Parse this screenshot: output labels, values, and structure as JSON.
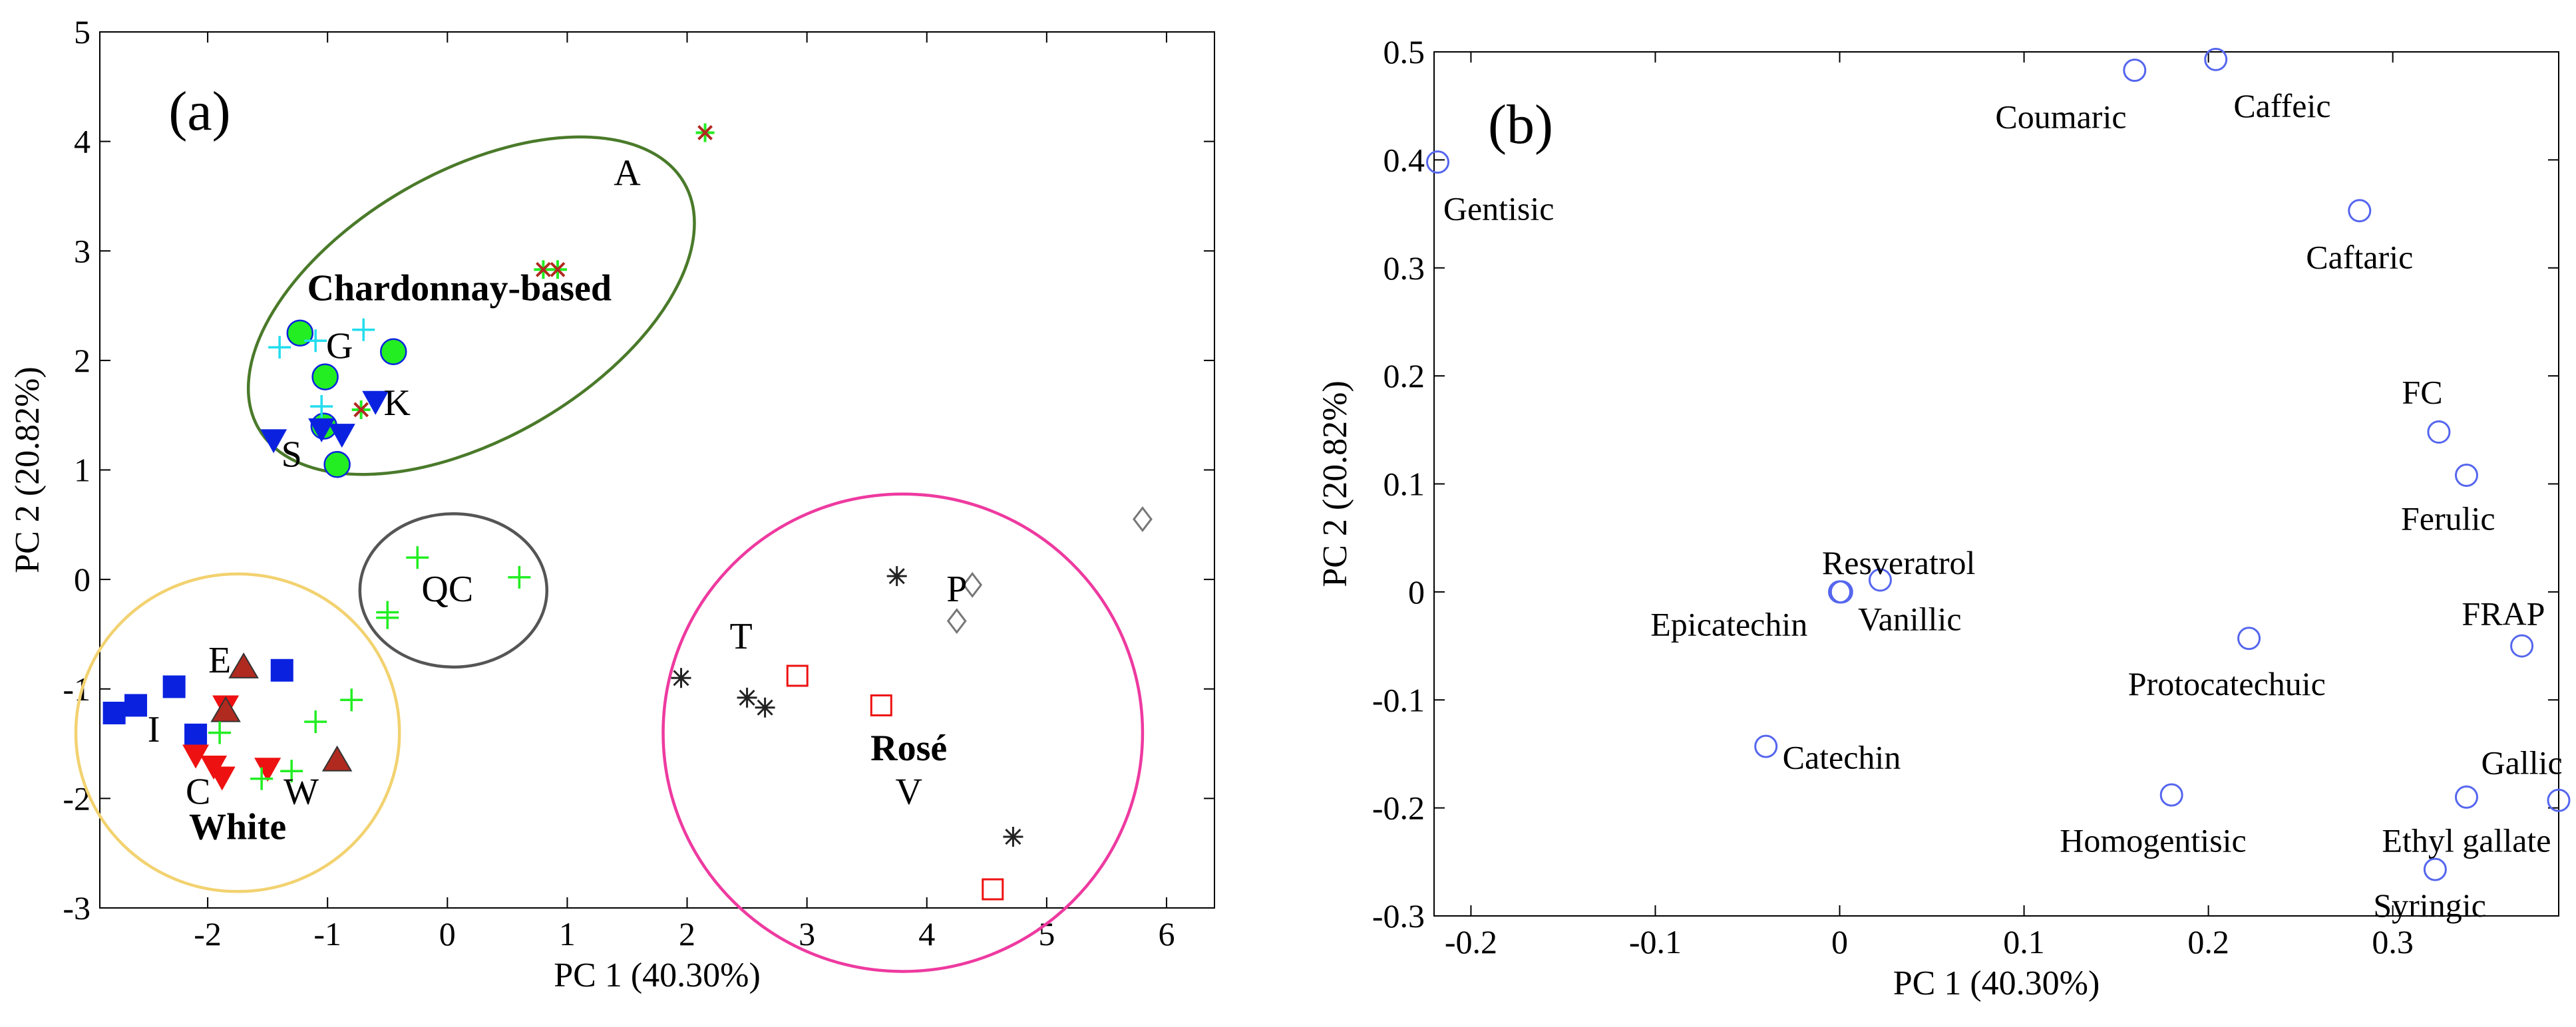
{
  "colors": {
    "blue": "#0a22e0",
    "red": "#ee1111",
    "green": "#22ee22",
    "cyan": "#22ddee",
    "dark": "#222222",
    "gray": "#777777",
    "brick": "#b02a20",
    "chard_ellipse": "#4a7a2a",
    "qc_ellipse": "#555555",
    "rose_ellipse": "#ee3aa0",
    "white_ellipse": "#f2d270",
    "loading_marker": "#5566ee"
  },
  "chart_data": [
    {
      "type": "scatter",
      "panel_label": "(a)",
      "xlabel": "PC 1 (40.30%)",
      "ylabel": "PC 2 (20.82%)",
      "xlim": [
        -2.9,
        6.4
      ],
      "ylim": [
        -3,
        5
      ],
      "xticks": [
        -2,
        -1,
        0,
        1,
        2,
        3,
        4,
        5,
        6
      ],
      "yticks": [
        -3,
        -2,
        -1,
        0,
        1,
        2,
        3,
        4,
        5
      ],
      "xtick_labels": [
        "-2",
        "-1",
        "0",
        "1",
        "2",
        "3",
        "4",
        "5",
        "6"
      ],
      "ytick_labels": [
        "-3",
        "-2",
        "-1",
        "0",
        "1",
        "2",
        "3",
        "4",
        "5"
      ],
      "series": [
        {
          "name": "white-squares",
          "marker": "square-filled",
          "color": "blue",
          "points": [
            [
              -2.78,
              -1.22
            ],
            [
              -2.6,
              -1.15
            ],
            [
              -2.28,
              -0.98
            ],
            [
              -2.1,
              -1.42
            ],
            [
              -1.38,
              -0.83
            ]
          ]
        },
        {
          "name": "white-down-triangles",
          "marker": "triangle-down-filled",
          "color": "red",
          "points": [
            [
              -2.1,
              -1.6
            ],
            [
              -1.95,
              -1.7
            ],
            [
              -1.88,
              -1.8
            ],
            [
              -1.85,
              -1.15
            ],
            [
              -1.5,
              -1.72
            ]
          ]
        },
        {
          "name": "white-up-triangles",
          "marker": "triangle-up-filled",
          "color": "brick",
          "points": [
            [
              -1.7,
              -0.8
            ],
            [
              -1.85,
              -1.2
            ],
            [
              -0.92,
              -1.65
            ]
          ]
        },
        {
          "name": "white-plus",
          "marker": "plus",
          "color": "green",
          "points": [
            [
              -1.9,
              -1.4
            ],
            [
              -1.55,
              -1.82
            ],
            [
              -1.3,
              -1.75
            ],
            [
              -1.1,
              -1.3
            ],
            [
              -0.8,
              -1.1
            ]
          ]
        },
        {
          "name": "qc-plus",
          "marker": "plus",
          "color": "green",
          "points": [
            [
              -0.25,
              0.2
            ],
            [
              -0.5,
              -0.3
            ],
            [
              -0.5,
              -0.35
            ],
            [
              0.6,
              0.02
            ]
          ]
        },
        {
          "name": "chard-circles",
          "marker": "circle-filled",
          "color": "green",
          "points": [
            [
              -1.23,
              2.25
            ],
            [
              -1.02,
              1.85
            ],
            [
              -0.45,
              2.08
            ],
            [
              -0.92,
              1.05
            ],
            [
              -1.03,
              1.4
            ]
          ]
        },
        {
          "name": "chard-down-triangles",
          "marker": "triangle-down-filled",
          "color": "blue",
          "points": [
            [
              -1.45,
              1.28
            ],
            [
              -0.88,
              1.33
            ],
            [
              -0.6,
              1.63
            ],
            [
              -1.05,
              1.38
            ]
          ]
        },
        {
          "name": "chard-plus",
          "marker": "plus",
          "color": "cyan",
          "points": [
            [
              -1.4,
              2.12
            ],
            [
              -1.1,
              2.18
            ],
            [
              -0.7,
              2.28
            ],
            [
              -1.05,
              1.58
            ]
          ]
        },
        {
          "name": "chard-star",
          "marker": "star-brick-green",
          "color": "brick",
          "points": [
            [
              0.8,
              2.83
            ],
            [
              0.92,
              2.83
            ],
            [
              2.15,
              4.08
            ],
            [
              -0.72,
              1.55
            ]
          ]
        },
        {
          "name": "rose-star",
          "marker": "asterisk",
          "color": "dark",
          "points": [
            [
              1.95,
              -0.9
            ],
            [
              2.5,
              -1.08
            ],
            [
              2.65,
              -1.17
            ],
            [
              3.75,
              0.03
            ],
            [
              4.72,
              -2.35
            ]
          ]
        },
        {
          "name": "rose-square",
          "marker": "square-open",
          "color": "red",
          "points": [
            [
              2.92,
              -0.88
            ],
            [
              3.62,
              -1.15
            ],
            [
              4.55,
              -2.83
            ]
          ]
        },
        {
          "name": "rose-diamond",
          "marker": "diamond-open",
          "color": "gray",
          "points": [
            [
              4.25,
              -0.38
            ],
            [
              4.38,
              -0.05
            ],
            [
              5.8,
              0.55
            ]
          ]
        }
      ],
      "ellipses": [
        {
          "name": "chardonnay-ellipse",
          "cx": 0.2,
          "cy": 2.5,
          "rx": 2.05,
          "ry": 1.22,
          "angle_deg": -30,
          "color": "chard_ellipse"
        },
        {
          "name": "qc-ellipse",
          "cx": 0.05,
          "cy": -0.1,
          "rx": 0.78,
          "ry": 0.7,
          "angle_deg": 0,
          "color": "qc_ellipse"
        },
        {
          "name": "rose-ellipse",
          "cx": 3.8,
          "cy": -1.4,
          "rx": 2.0,
          "ry": 2.18,
          "angle_deg": 0,
          "color": "rose_ellipse"
        },
        {
          "name": "white-ellipse",
          "cx": -1.75,
          "cy": -1.4,
          "rx": 1.35,
          "ry": 1.45,
          "angle_deg": 0,
          "color": "white_ellipse"
        }
      ],
      "annotations": [
        {
          "text": "A",
          "x": 1.5,
          "y": 3.6,
          "bold": false
        },
        {
          "text": "Chardonnay-based",
          "x": 0.1,
          "y": 2.55,
          "bold": true
        },
        {
          "text": "G",
          "x": -0.9,
          "y": 2.02,
          "bold": false
        },
        {
          "text": "K",
          "x": -0.42,
          "y": 1.5,
          "bold": false
        },
        {
          "text": "S",
          "x": -1.3,
          "y": 1.03,
          "bold": false
        },
        {
          "text": "QC",
          "x": 0.0,
          "y": -0.2,
          "bold": false
        },
        {
          "text": "E",
          "x": -1.9,
          "y": -0.85,
          "bold": false
        },
        {
          "text": "I",
          "x": -2.45,
          "y": -1.48,
          "bold": false
        },
        {
          "text": "C",
          "x": -2.08,
          "y": -2.05,
          "bold": false
        },
        {
          "text": "W",
          "x": -1.22,
          "y": -2.05,
          "bold": false
        },
        {
          "text": "White",
          "x": -1.75,
          "y": -2.37,
          "bold": true
        },
        {
          "text": "T",
          "x": 2.45,
          "y": -0.63,
          "bold": false
        },
        {
          "text": "P",
          "x": 4.25,
          "y": -0.2,
          "bold": false
        },
        {
          "text": "Rosé",
          "x": 3.85,
          "y": -1.65,
          "bold": true
        },
        {
          "text": "V",
          "x": 3.85,
          "y": -2.05,
          "bold": false
        }
      ]
    },
    {
      "type": "scatter",
      "panel_label": "(b)",
      "xlabel": "PC 1 (40.30%)",
      "ylabel": "PC 2 (20.82%)",
      "xlim": [
        -0.22,
        0.39
      ],
      "ylim": [
        -0.3,
        0.5
      ],
      "xticks": [
        -0.2,
        -0.1,
        0,
        0.1,
        0.2,
        0.3
      ],
      "yticks": [
        -0.3,
        -0.2,
        -0.1,
        0,
        0.1,
        0.2,
        0.3,
        0.4,
        0.5
      ],
      "xtick_labels": [
        "-0.2",
        "-0.1",
        "0",
        "0.1",
        "0.2",
        "0.3"
      ],
      "ytick_labels": [
        "-0.3",
        "-0.2",
        "-0.1",
        "0",
        "0.1",
        "0.2",
        "0.3",
        "0.4",
        "0.5"
      ],
      "points": [
        {
          "label": "Gentisic",
          "x": -0.218,
          "y": 0.398,
          "lx": -0.215,
          "ly": 0.355,
          "anchor": "start"
        },
        {
          "label": "Coumaric",
          "x": 0.16,
          "y": 0.483,
          "lx": 0.12,
          "ly": 0.44,
          "anchor": "middle"
        },
        {
          "label": "Caffeic",
          "x": 0.204,
          "y": 0.493,
          "lx": 0.24,
          "ly": 0.45,
          "anchor": "middle"
        },
        {
          "label": "Caftaric",
          "x": 0.282,
          "y": 0.353,
          "lx": 0.282,
          "ly": 0.31,
          "anchor": "middle"
        },
        {
          "label": "FC",
          "x": 0.325,
          "y": 0.148,
          "lx": 0.316,
          "ly": 0.185,
          "anchor": "middle"
        },
        {
          "label": "Ferulic",
          "x": 0.34,
          "y": 0.108,
          "lx": 0.33,
          "ly": 0.068,
          "anchor": "middle"
        },
        {
          "label": "Resveratrol",
          "x": 0.022,
          "y": 0.011,
          "lx": 0.032,
          "ly": 0.027,
          "anchor": "middle"
        },
        {
          "label": "Epicatechin",
          "x": 0.0,
          "y": 0.0,
          "lx": -0.06,
          "ly": -0.03,
          "anchor": "middle"
        },
        {
          "label": "Vanillic",
          "x": 0.001,
          "y": 0.0,
          "lx": 0.038,
          "ly": -0.025,
          "anchor": "middle"
        },
        {
          "label": "FRAP",
          "x": 0.37,
          "y": -0.05,
          "lx": 0.36,
          "ly": -0.02,
          "anchor": "middle"
        },
        {
          "label": "Protocatechuic",
          "x": 0.222,
          "y": -0.043,
          "lx": 0.21,
          "ly": -0.085,
          "anchor": "middle"
        },
        {
          "label": "Catechin",
          "x": -0.04,
          "y": -0.143,
          "lx": -0.031,
          "ly": -0.153,
          "anchor": "start"
        },
        {
          "label": "Homogentisic",
          "x": 0.18,
          "y": -0.188,
          "lx": 0.17,
          "ly": -0.23,
          "anchor": "middle"
        },
        {
          "label": "Gallic",
          "x": 0.39,
          "y": -0.193,
          "lx": 0.37,
          "ly": -0.158,
          "anchor": "middle"
        },
        {
          "label": "Ethyl gallate",
          "x": 0.34,
          "y": -0.19,
          "lx": 0.34,
          "ly": -0.23,
          "anchor": "middle"
        },
        {
          "label": "Syringic",
          "x": 0.323,
          "y": -0.257,
          "lx": 0.32,
          "ly": -0.29,
          "anchor": "middle"
        }
      ]
    }
  ]
}
